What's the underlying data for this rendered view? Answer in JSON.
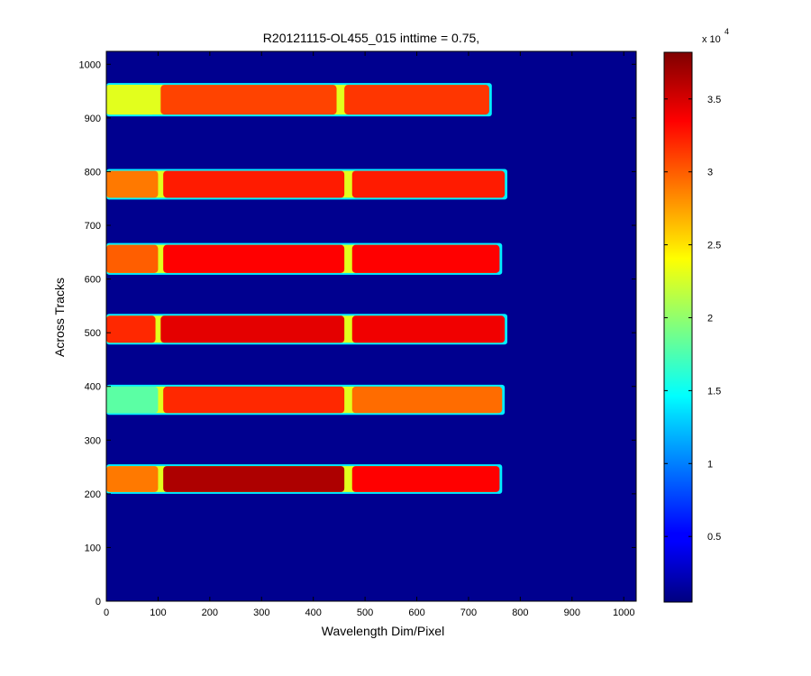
{
  "chart_data": {
    "type": "heatmap",
    "title": "R20121115-OL455_015 inttime = 0.75,",
    "xlabel": "Wavelength Dim/Pixel",
    "ylabel": "Across Tracks",
    "xlim": [
      0,
      1024
    ],
    "ylim": [
      0,
      1024
    ],
    "xticks": [
      0,
      100,
      200,
      300,
      400,
      500,
      600,
      700,
      800,
      900,
      1000
    ],
    "yticks": [
      0,
      100,
      200,
      300,
      400,
      500,
      600,
      700,
      800,
      900,
      1000
    ],
    "grid": false,
    "colormap": "jet",
    "background_value": 500,
    "colorbar": {
      "range": [
        500,
        38200
      ],
      "ticks": [
        0.5,
        1,
        1.5,
        2,
        2.5,
        3,
        3.5
      ],
      "tick_labels": [
        "0.5",
        "1",
        "1.5",
        "2",
        "2.5",
        "3",
        "3.5"
      ],
      "multiplier": "x 10",
      "exponent": "4"
    },
    "stripes": [
      {
        "y": [
          200,
          255
        ],
        "x": [
          0,
          765
        ],
        "segments": [
          {
            "x": [
              0,
              100
            ],
            "value": 29000
          },
          {
            "x": [
              110,
              460
            ],
            "value": 36500
          },
          {
            "x": [
              475,
              760
            ],
            "value": 33500
          }
        ]
      },
      {
        "y": [
          347,
          403
        ],
        "x": [
          0,
          770
        ],
        "segments": [
          {
            "x": [
              0,
              100
            ],
            "value": 18000
          },
          {
            "x": [
              110,
              460
            ],
            "value": 32000
          },
          {
            "x": [
              475,
              765
            ],
            "value": 29500
          }
        ]
      },
      {
        "y": [
          478,
          535
        ],
        "x": [
          0,
          775
        ],
        "segments": [
          {
            "x": [
              0,
              95
            ],
            "value": 32000
          },
          {
            "x": [
              105,
              460
            ],
            "value": 34500
          },
          {
            "x": [
              475,
              770
            ],
            "value": 34000
          }
        ]
      },
      {
        "y": [
          608,
          667
        ],
        "x": [
          0,
          765
        ],
        "segments": [
          {
            "x": [
              0,
              100
            ],
            "value": 30000
          },
          {
            "x": [
              110,
              460
            ],
            "value": 33500
          },
          {
            "x": [
              475,
              760
            ],
            "value": 33500
          }
        ]
      },
      {
        "y": [
          748,
          805
        ],
        "x": [
          0,
          775
        ],
        "segments": [
          {
            "x": [
              0,
              100
            ],
            "value": 29000
          },
          {
            "x": [
              110,
              460
            ],
            "value": 32500
          },
          {
            "x": [
              475,
              770
            ],
            "value": 32500
          }
        ]
      },
      {
        "y": [
          903,
          965
        ],
        "x": [
          0,
          745
        ],
        "segments": [
          {
            "x": [
              0,
              95
            ],
            "value": 23000
          },
          {
            "x": [
              105,
              445
            ],
            "value": 31000
          },
          {
            "x": [
              460,
              740
            ],
            "value": 31500
          }
        ]
      }
    ]
  }
}
